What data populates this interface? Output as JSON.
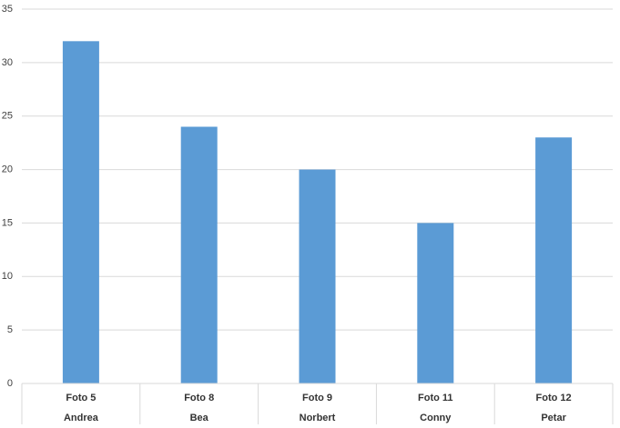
{
  "chart_data": {
    "type": "bar",
    "categories": [
      [
        "Foto 5",
        "Andrea"
      ],
      [
        "Foto 8",
        "Bea"
      ],
      [
        "Foto 9",
        "Norbert"
      ],
      [
        "Foto 11",
        "Conny"
      ],
      [
        "Foto 12",
        "Petar"
      ]
    ],
    "values": [
      32,
      24,
      20,
      15,
      23
    ],
    "color": "#5b9bd5",
    "ylim": [
      0,
      35
    ],
    "yticks": [
      0,
      5,
      10,
      15,
      20,
      25,
      30,
      35
    ],
    "grid": true
  }
}
